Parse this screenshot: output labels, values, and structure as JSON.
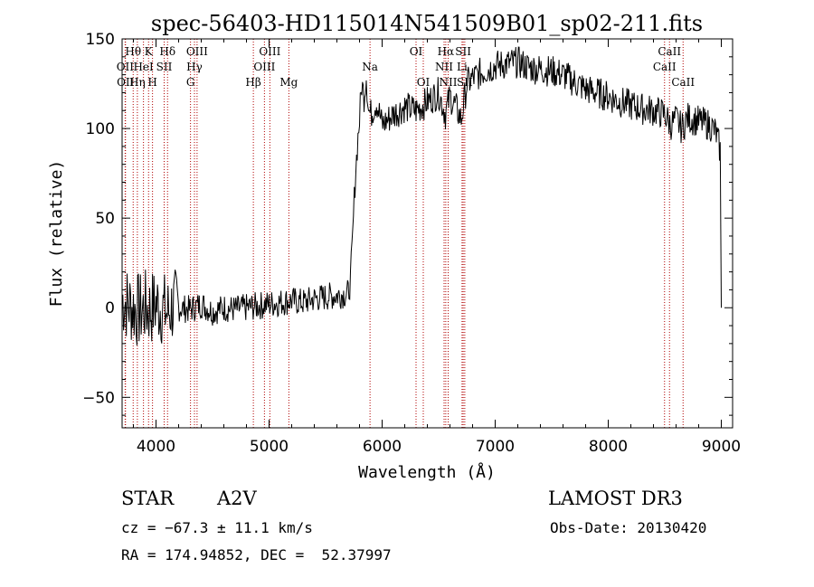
{
  "chart_data": {
    "type": "line",
    "title": "spec-56403-HD115014N541509B01_sp02-211.fits",
    "xlabel": "Wavelength (Å)",
    "ylabel": "Flux (relative)",
    "xlim": [
      3700,
      9100
    ],
    "ylim": [
      -67,
      150
    ],
    "xticks": [
      4000,
      5000,
      6000,
      7000,
      8000,
      9000
    ],
    "xtick_labels": [
      "4000",
      "5000",
      "6000",
      "7000",
      "8000",
      "9000"
    ],
    "yticks": [
      -50,
      0,
      50,
      100,
      150
    ],
    "ytick_labels": [
      "−50",
      "0",
      "50",
      "100",
      "150"
    ],
    "grid": false,
    "series": [
      {
        "name": "spectrum",
        "x": [
          3700,
          3750,
          3800,
          3850,
          3900,
          3950,
          4000,
          4050,
          4100,
          4150,
          4200,
          4300,
          4400,
          4500,
          4600,
          4700,
          4800,
          4900,
          5000,
          5100,
          5200,
          5300,
          5400,
          5500,
          5600,
          5700,
          5720,
          5740,
          5760,
          5780,
          5800,
          5820,
          5840,
          5860,
          5880,
          5900,
          5950,
          6000,
          6100,
          6200,
          6300,
          6400,
          6500,
          6560,
          6600,
          6650,
          6700,
          6750,
          6800,
          6900,
          7000,
          7100,
          7200,
          7300,
          7400,
          7500,
          7600,
          7700,
          7800,
          7900,
          8000,
          8100,
          8200,
          8300,
          8400,
          8500,
          8550,
          8600,
          8650,
          8700,
          8800,
          8900,
          8950,
          8990,
          9000
        ],
        "values": [
          5,
          2,
          0,
          -2,
          0,
          -1,
          2,
          0,
          -3,
          1,
          0,
          -1,
          2,
          -2,
          0,
          -1,
          0,
          1,
          2,
          3,
          4,
          3,
          5,
          6,
          7,
          8,
          15,
          40,
          70,
          90,
          105,
          125,
          118,
          130,
          110,
          108,
          115,
          102,
          108,
          112,
          110,
          115,
          120,
          108,
          118,
          112,
          105,
          125,
          128,
          132,
          135,
          136,
          137,
          134,
          133,
          132,
          130,
          126,
          122,
          120,
          118,
          115,
          113,
          111,
          110,
          108,
          102,
          105,
          100,
          106,
          104,
          102,
          98,
          88,
          0
        ]
      }
    ],
    "spectral_lines": [
      {
        "label": "Hθ",
        "wavelength": 3798,
        "row": 1
      },
      {
        "label": "OII",
        "wavelength": 3727,
        "row": 2
      },
      {
        "label": "OII",
        "wavelength": 3730,
        "row": 3
      },
      {
        "label": "K",
        "wavelength": 3934,
        "row": 1
      },
      {
        "label": "HeI",
        "wavelength": 3889,
        "row": 2
      },
      {
        "label": "Hη",
        "wavelength": 3835,
        "row": 3
      },
      {
        "label": "Hδ",
        "wavelength": 4102,
        "row": 1
      },
      {
        "label": "SII",
        "wavelength": 4072,
        "row": 2
      },
      {
        "label": "H",
        "wavelength": 3969,
        "row": 3
      },
      {
        "label": "OIII",
        "wavelength": 4363,
        "row": 1
      },
      {
        "label": "Hγ",
        "wavelength": 4340,
        "row": 2
      },
      {
        "label": "G",
        "wavelength": 4305,
        "row": 3
      },
      {
        "label": "OIII",
        "wavelength": 5007,
        "row": 1
      },
      {
        "label": "OIII",
        "wavelength": 4959,
        "row": 2
      },
      {
        "label": "Hβ",
        "wavelength": 4861,
        "row": 3
      },
      {
        "label": "Mg",
        "wavelength": 5175,
        "row": 3
      },
      {
        "label": "Na",
        "wavelength": 5893,
        "row": 2
      },
      {
        "label": "OI",
        "wavelength": 6300,
        "row": 1
      },
      {
        "label": "OI",
        "wavelength": 6364,
        "row": 3
      },
      {
        "label": "Hα",
        "wavelength": 6563,
        "row": 1
      },
      {
        "label": "NII",
        "wavelength": 6548,
        "row": 2
      },
      {
        "label": "NII",
        "wavelength": 6584,
        "row": 3
      },
      {
        "label": "SII",
        "wavelength": 6717,
        "row": 1
      },
      {
        "label": "Li",
        "wavelength": 6707,
        "row": 2
      },
      {
        "label": "SII",
        "wavelength": 6731,
        "row": 3
      },
      {
        "label": "CaII",
        "wavelength": 8542,
        "row": 1
      },
      {
        "label": "CaII",
        "wavelength": 8498,
        "row": 2
      },
      {
        "label": "CaII",
        "wavelength": 8662,
        "row": 3
      }
    ]
  },
  "info": {
    "class_label": "STAR",
    "subclass": "A2V",
    "survey": "LAMOST DR3",
    "cz": "cz = −67.3 ± 11.1 km/s",
    "obs_date": "Obs-Date: 20130420",
    "coords": "RA = 174.94852, DEC =  52.37997"
  },
  "colors": {
    "line": "#000000",
    "marker": "#b00000",
    "axis": "#000000",
    "background": "#ffffff"
  }
}
